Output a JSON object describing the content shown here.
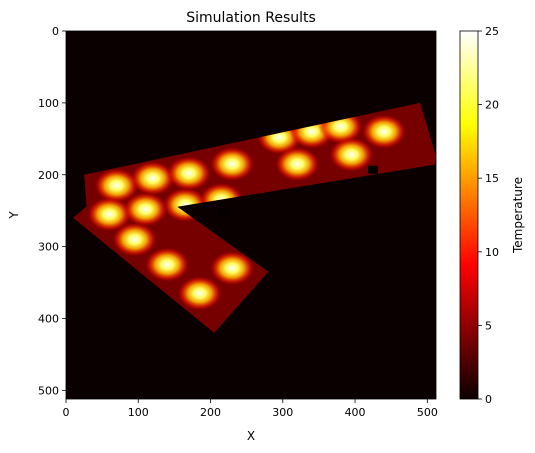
{
  "chart_data": {
    "type": "heatmap",
    "title": "Simulation Results",
    "xlabel": "X",
    "ylabel": "Y",
    "xlim": [
      0,
      512
    ],
    "ylim": [
      512,
      0
    ],
    "x_ticks": [
      0,
      100,
      200,
      300,
      400,
      500
    ],
    "y_ticks": [
      0,
      100,
      200,
      300,
      400,
      500
    ],
    "colorbar": {
      "label": "Temperature",
      "range": [
        0,
        25
      ],
      "ticks": [
        0,
        5,
        10,
        15,
        20,
        25
      ],
      "colormap": "hot"
    },
    "background_value": 0,
    "floor_value": 4,
    "floor_polygons": [
      [
        [
          25,
          200
        ],
        [
          490,
          100
        ],
        [
          515,
          185
        ],
        [
          30,
          265
        ]
      ],
      [
        [
          10,
          260
        ],
        [
          85,
          195
        ],
        [
          280,
          335
        ],
        [
          205,
          420
        ]
      ]
    ],
    "cold_spots": [
      {
        "x": 218,
        "y": 253
      },
      {
        "x": 425,
        "y": 193
      }
    ],
    "heat_sources": [
      {
        "x": 70,
        "y": 215,
        "value": 25
      },
      {
        "x": 120,
        "y": 205,
        "value": 25
      },
      {
        "x": 170,
        "y": 198,
        "value": 25
      },
      {
        "x": 230,
        "y": 185,
        "value": 25
      },
      {
        "x": 295,
        "y": 148,
        "value": 25
      },
      {
        "x": 340,
        "y": 140,
        "value": 25
      },
      {
        "x": 380,
        "y": 133,
        "value": 25
      },
      {
        "x": 440,
        "y": 140,
        "value": 25
      },
      {
        "x": 320,
        "y": 185,
        "value": 25
      },
      {
        "x": 395,
        "y": 172,
        "value": 25
      },
      {
        "x": 60,
        "y": 255,
        "value": 25
      },
      {
        "x": 110,
        "y": 248,
        "value": 25
      },
      {
        "x": 165,
        "y": 242,
        "value": 25
      },
      {
        "x": 215,
        "y": 235,
        "value": 25
      },
      {
        "x": 95,
        "y": 290,
        "value": 25
      },
      {
        "x": 140,
        "y": 325,
        "value": 25
      },
      {
        "x": 185,
        "y": 365,
        "value": 25
      },
      {
        "x": 230,
        "y": 330,
        "value": 25
      }
    ]
  }
}
